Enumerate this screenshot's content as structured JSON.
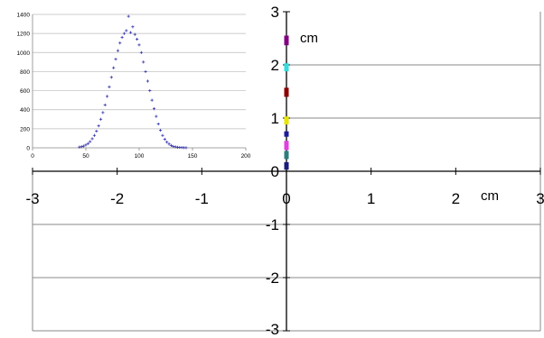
{
  "chart_data": [
    {
      "type": "scatter",
      "title": "",
      "xlabel": "cm",
      "ylabel": "cm",
      "xlim": [
        -3,
        3
      ],
      "ylim": [
        -3,
        3
      ],
      "x_ticks": [
        "-3",
        "-2",
        "-1",
        "0",
        "1",
        "2",
        "3"
      ],
      "y_ticks": [
        "-3",
        "-2",
        "-1",
        "0",
        "1",
        "2",
        "3"
      ],
      "grid": "horizontal",
      "legend": "none",
      "series": [
        {
          "color": "#1a1a7a",
          "points": [
            [
              0,
              0.08
            ],
            [
              0,
              0.12
            ]
          ]
        },
        {
          "color": "#2e7d7d",
          "points": [
            [
              0,
              0.28
            ],
            [
              0,
              0.33
            ]
          ]
        },
        {
          "color": "#e040e0",
          "points": [
            [
              0,
              0.45
            ],
            [
              0,
              0.52
            ]
          ]
        },
        {
          "color": "#1a1a9a",
          "points": [
            [
              0,
              0.7
            ]
          ]
        },
        {
          "color": "#e6e600",
          "points": [
            [
              0,
              0.93
            ],
            [
              0,
              0.98
            ]
          ]
        },
        {
          "color": "#8b0000",
          "points": [
            [
              0,
              1.45
            ],
            [
              0,
              1.52
            ]
          ]
        },
        {
          "color": "#33dddd",
          "points": [
            [
              0,
              1.93
            ],
            [
              0,
              1.98
            ]
          ]
        },
        {
          "color": "#800080",
          "points": [
            [
              0,
              2.42
            ],
            [
              0,
              2.5
            ]
          ]
        }
      ]
    },
    {
      "type": "scatter",
      "title": "",
      "xlabel": "",
      "ylabel": "",
      "xlim": [
        0,
        200
      ],
      "ylim": [
        0,
        1400
      ],
      "x_ticks": [
        "0",
        "50",
        "100",
        "150",
        "200"
      ],
      "y_ticks": [
        "0",
        "200",
        "400",
        "600",
        "800",
        "1000",
        "1200",
        "1400"
      ],
      "grid": "horizontal",
      "legend": "none",
      "series": [
        {
          "color": "#3333aa",
          "description": "Gaussian-shaped distribution of counts",
          "x": [
            44,
            46,
            48,
            50,
            52,
            54,
            56,
            58,
            60,
            62,
            64,
            66,
            68,
            70,
            72,
            74,
            76,
            78,
            80,
            82,
            84,
            86,
            88,
            90,
            92,
            94,
            96,
            98,
            100,
            102,
            104,
            106,
            108,
            110,
            112,
            114,
            116,
            118,
            120,
            122,
            124,
            126,
            128,
            130,
            132,
            134,
            136,
            138,
            140,
            142,
            144
          ],
          "y": [
            8,
            12,
            18,
            30,
            45,
            65,
            95,
            130,
            175,
            230,
            300,
            370,
            450,
            540,
            640,
            740,
            840,
            930,
            1020,
            1100,
            1160,
            1200,
            1230,
            1380,
            1210,
            1270,
            1190,
            1140,
            1080,
            1000,
            900,
            800,
            700,
            600,
            500,
            410,
            330,
            250,
            185,
            130,
            90,
            60,
            40,
            25,
            15,
            10,
            6,
            4,
            3,
            2,
            1
          ]
        }
      ]
    }
  ]
}
